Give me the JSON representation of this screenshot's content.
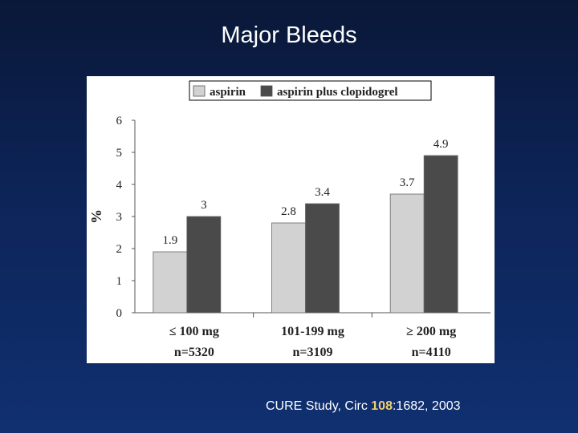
{
  "title": "Major Bleeds",
  "citation": {
    "prefix": "CURE Study,  Circ ",
    "volume": "108",
    "suffix": ":1682, 2003"
  },
  "colors": {
    "aspirin": "#d2d2d2",
    "combo": "#4a4a4a",
    "title_text": "#ffffff",
    "citation_volume": "#f0d070"
  },
  "chart_data": {
    "type": "bar",
    "ylabel": "%",
    "ylim": [
      0,
      6
    ],
    "yticks": [
      "0",
      "1",
      "2",
      "3",
      "4",
      "5",
      "6"
    ],
    "legend_position": "top",
    "categories": [
      {
        "dose": "≤ 100 mg",
        "n": "n=5320"
      },
      {
        "dose": "101-199 mg",
        "n": "n=3109"
      },
      {
        "dose": "≥ 200 mg",
        "n": "n=4110"
      }
    ],
    "series": [
      {
        "name": "aspirin",
        "values": [
          1.9,
          2.8,
          3.7
        ],
        "labels": [
          "1.9",
          "2.8",
          "3.7"
        ]
      },
      {
        "name": "aspirin plus clopidogrel",
        "values": [
          3,
          3.4,
          4.9
        ],
        "labels": [
          "3",
          "3.4",
          "4.9"
        ]
      }
    ]
  }
}
